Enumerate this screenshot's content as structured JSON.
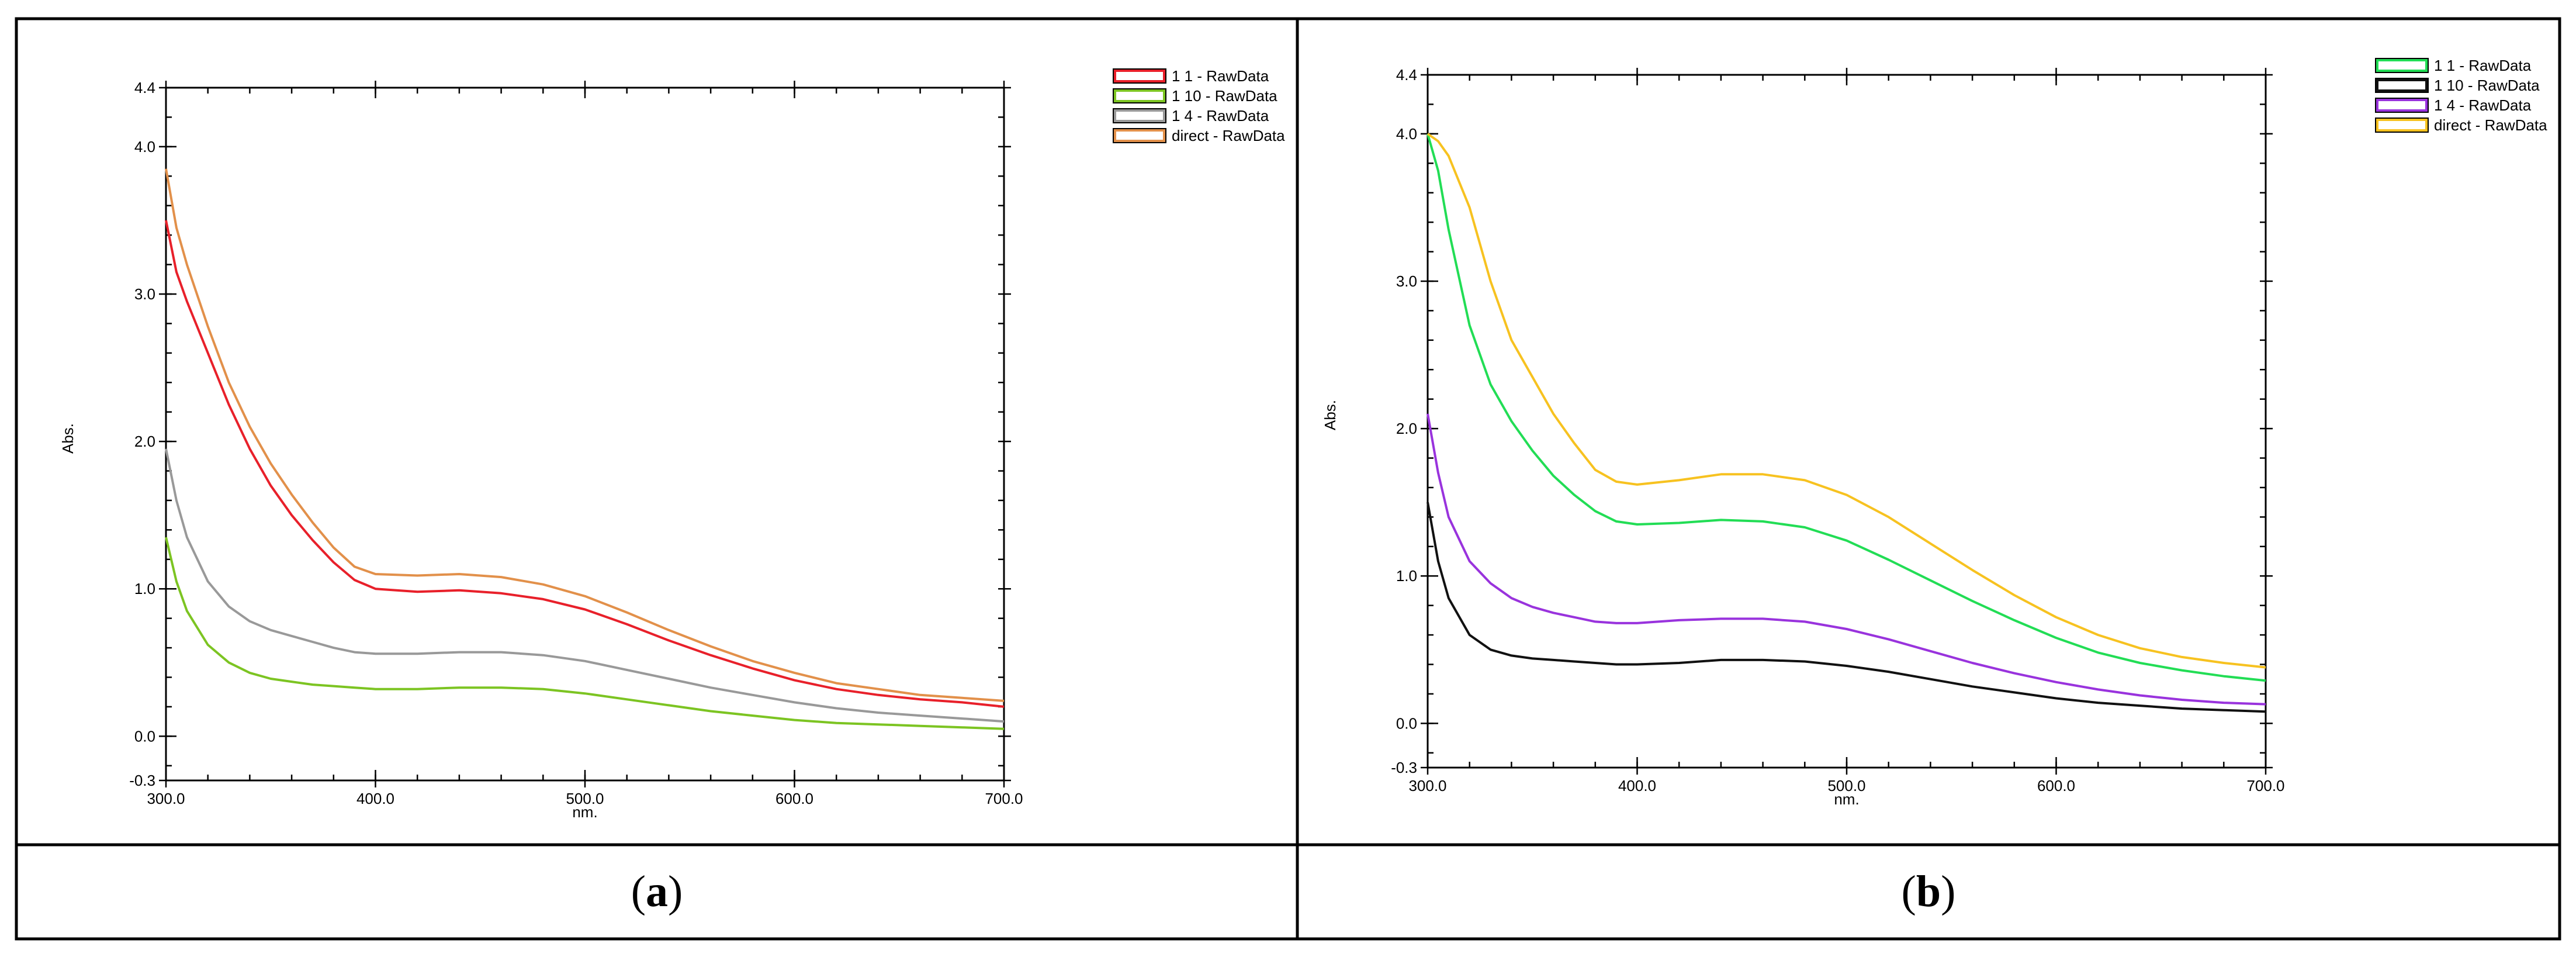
{
  "panels": [
    {
      "caption_letter": "a",
      "caption_open": "(",
      "caption_close": ")"
    },
    {
      "caption_letter": "b",
      "caption_open": "(",
      "caption_close": ")"
    }
  ],
  "chart_data": [
    {
      "type": "line",
      "panel": "a",
      "xlabel": "nm.",
      "ylabel": "Abs.",
      "xlim": [
        300.0,
        700.0
      ],
      "ylim": [
        -0.3,
        4.4
      ],
      "x_ticks": [
        "300.0",
        "400.0",
        "500.0",
        "600.0",
        "700.0"
      ],
      "y_ticks": [
        "-0.3",
        "0.0",
        "1.0",
        "2.0",
        "3.0",
        "4.0",
        "4.4"
      ],
      "x_tick_values": [
        300,
        400,
        500,
        600,
        700
      ],
      "y_tick_values": [
        -0.3,
        0.0,
        1.0,
        2.0,
        3.0,
        4.0,
        4.4
      ],
      "legend_position": "top-right",
      "series": [
        {
          "name": "1 1 - RawData",
          "color": "#e8202a",
          "x": [
            300,
            305,
            310,
            320,
            330,
            340,
            350,
            360,
            370,
            380,
            390,
            400,
            420,
            440,
            460,
            480,
            500,
            520,
            540,
            560,
            580,
            600,
            620,
            640,
            660,
            680,
            700
          ],
          "y": [
            3.5,
            3.15,
            2.95,
            2.6,
            2.25,
            1.95,
            1.7,
            1.5,
            1.33,
            1.18,
            1.06,
            1.0,
            0.98,
            0.99,
            0.97,
            0.93,
            0.86,
            0.76,
            0.65,
            0.55,
            0.46,
            0.38,
            0.32,
            0.28,
            0.25,
            0.23,
            0.2
          ]
        },
        {
          "name": "1 10 - RawData",
          "color": "#7cc422",
          "x": [
            300,
            305,
            310,
            320,
            330,
            340,
            350,
            360,
            370,
            380,
            390,
            400,
            420,
            440,
            460,
            480,
            500,
            520,
            540,
            560,
            580,
            600,
            620,
            640,
            660,
            680,
            700
          ],
          "y": [
            1.35,
            1.05,
            0.85,
            0.62,
            0.5,
            0.43,
            0.39,
            0.37,
            0.35,
            0.34,
            0.33,
            0.32,
            0.32,
            0.33,
            0.33,
            0.32,
            0.29,
            0.25,
            0.21,
            0.17,
            0.14,
            0.11,
            0.09,
            0.08,
            0.07,
            0.06,
            0.05
          ]
        },
        {
          "name": "1 4 - RawData",
          "color": "#999999",
          "x": [
            300,
            305,
            310,
            320,
            330,
            340,
            350,
            360,
            370,
            380,
            390,
            400,
            420,
            440,
            460,
            480,
            500,
            520,
            540,
            560,
            580,
            600,
            620,
            640,
            660,
            680,
            700
          ],
          "y": [
            1.95,
            1.6,
            1.35,
            1.05,
            0.88,
            0.78,
            0.72,
            0.68,
            0.64,
            0.6,
            0.57,
            0.56,
            0.56,
            0.57,
            0.57,
            0.55,
            0.51,
            0.45,
            0.39,
            0.33,
            0.28,
            0.23,
            0.19,
            0.16,
            0.14,
            0.12,
            0.1
          ]
        },
        {
          "name": "direct - RawData",
          "color": "#e2904a",
          "x": [
            300,
            305,
            310,
            320,
            330,
            340,
            350,
            360,
            370,
            380,
            390,
            400,
            420,
            440,
            460,
            480,
            500,
            520,
            540,
            560,
            580,
            600,
            620,
            640,
            660,
            680,
            700
          ],
          "y": [
            3.85,
            3.45,
            3.2,
            2.78,
            2.4,
            2.1,
            1.85,
            1.64,
            1.45,
            1.28,
            1.15,
            1.1,
            1.09,
            1.1,
            1.08,
            1.03,
            0.95,
            0.84,
            0.72,
            0.61,
            0.51,
            0.43,
            0.36,
            0.32,
            0.28,
            0.26,
            0.24
          ]
        }
      ]
    },
    {
      "type": "line",
      "panel": "b",
      "xlabel": "nm.",
      "ylabel": "Abs.",
      "xlim": [
        300.0,
        700.0
      ],
      "ylim": [
        -0.3,
        4.4
      ],
      "x_ticks": [
        "300.0",
        "400.0",
        "500.0",
        "600.0",
        "700.0"
      ],
      "y_ticks": [
        "-0.3",
        "0.0",
        "1.0",
        "2.0",
        "3.0",
        "4.0",
        "4.4"
      ],
      "x_tick_values": [
        300,
        400,
        500,
        600,
        700
      ],
      "y_tick_values": [
        -0.3,
        0.0,
        1.0,
        2.0,
        3.0,
        4.0,
        4.4
      ],
      "legend_position": "top-right",
      "series": [
        {
          "name": "1 1 - RawData",
          "color": "#22dd55",
          "x": [
            300,
            305,
            310,
            320,
            330,
            340,
            350,
            360,
            370,
            380,
            390,
            400,
            420,
            440,
            460,
            480,
            500,
            520,
            540,
            560,
            580,
            600,
            620,
            640,
            660,
            680,
            700
          ],
          "y": [
            4.0,
            3.75,
            3.35,
            2.7,
            2.3,
            2.05,
            1.85,
            1.68,
            1.55,
            1.44,
            1.37,
            1.35,
            1.36,
            1.38,
            1.37,
            1.33,
            1.24,
            1.11,
            0.97,
            0.83,
            0.7,
            0.58,
            0.48,
            0.41,
            0.36,
            0.32,
            0.29
          ]
        },
        {
          "name": "1 10 - RawData",
          "color": "#111111",
          "x": [
            300,
            305,
            310,
            320,
            330,
            340,
            350,
            360,
            370,
            380,
            390,
            400,
            420,
            440,
            460,
            480,
            500,
            520,
            540,
            560,
            580,
            600,
            620,
            640,
            660,
            680,
            700
          ],
          "y": [
            1.5,
            1.1,
            0.85,
            0.6,
            0.5,
            0.46,
            0.44,
            0.43,
            0.42,
            0.41,
            0.4,
            0.4,
            0.41,
            0.43,
            0.43,
            0.42,
            0.39,
            0.35,
            0.3,
            0.25,
            0.21,
            0.17,
            0.14,
            0.12,
            0.1,
            0.09,
            0.08
          ]
        },
        {
          "name": "1 4 - RawData",
          "color": "#9933dd",
          "x": [
            300,
            305,
            310,
            320,
            330,
            340,
            350,
            360,
            370,
            380,
            390,
            400,
            420,
            440,
            460,
            480,
            500,
            520,
            540,
            560,
            580,
            600,
            620,
            640,
            660,
            680,
            700
          ],
          "y": [
            2.1,
            1.7,
            1.4,
            1.1,
            0.95,
            0.85,
            0.79,
            0.75,
            0.72,
            0.69,
            0.68,
            0.68,
            0.7,
            0.71,
            0.71,
            0.69,
            0.64,
            0.57,
            0.49,
            0.41,
            0.34,
            0.28,
            0.23,
            0.19,
            0.16,
            0.14,
            0.13
          ]
        },
        {
          "name": "direct - RawData",
          "color": "#f7c220",
          "x": [
            300,
            305,
            310,
            320,
            330,
            340,
            350,
            360,
            370,
            380,
            390,
            400,
            420,
            440,
            460,
            480,
            500,
            520,
            540,
            560,
            580,
            600,
            620,
            640,
            660,
            680,
            700
          ],
          "y": [
            4.0,
            3.95,
            3.85,
            3.5,
            3.0,
            2.6,
            2.35,
            2.1,
            1.9,
            1.72,
            1.64,
            1.62,
            1.65,
            1.69,
            1.69,
            1.65,
            1.55,
            1.4,
            1.22,
            1.04,
            0.87,
            0.72,
            0.6,
            0.51,
            0.45,
            0.41,
            0.38
          ]
        }
      ]
    }
  ]
}
